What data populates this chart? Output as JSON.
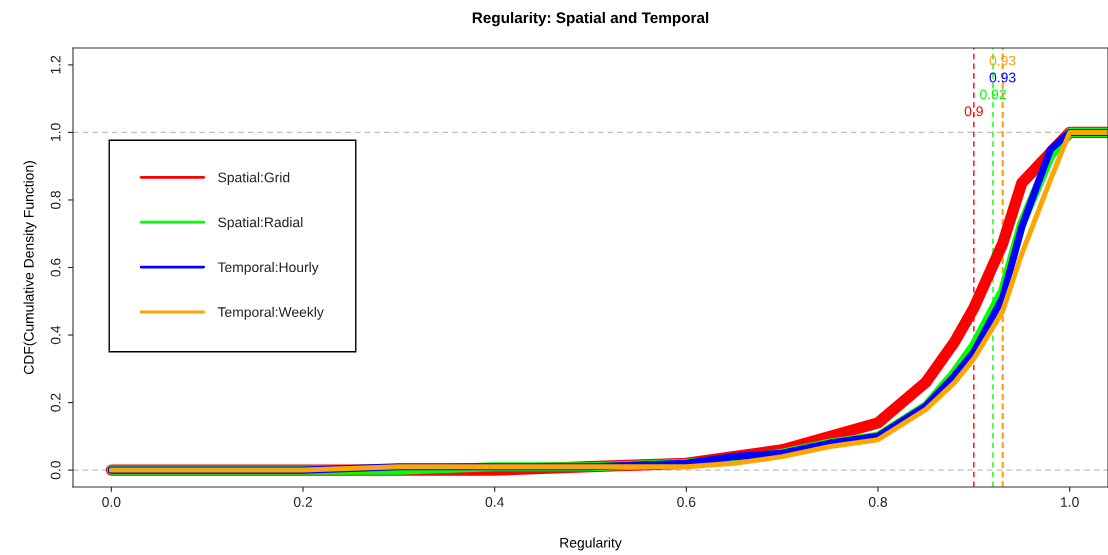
{
  "chart_data": {
    "type": "line",
    "title": "Regularity: Spatial and Temporal",
    "xlabel": "Regularity",
    "ylabel": "CDF(Cumulative Density Function)",
    "x": [
      0,
      0.1,
      0.2,
      0.3,
      0.4,
      0.5,
      0.6,
      0.65,
      0.7,
      0.75,
      0.8,
      0.85,
      0.88,
      0.9,
      0.93,
      0.95,
      0.98,
      1.0,
      1.04
    ],
    "series": [
      {
        "name": "Spatial:Grid",
        "color": "#ff0000",
        "values": [
          0,
          0,
          0,
          0,
          0,
          0.01,
          0.02,
          0.04,
          0.06,
          0.1,
          0.14,
          0.26,
          0.38,
          0.48,
          0.67,
          0.85,
          0.94,
          1.0,
          1.0
        ]
      },
      {
        "name": "Spatial:Radial",
        "color": "#00ff00",
        "values": [
          0,
          0,
          0,
          0,
          0.01,
          0.01,
          0.02,
          0.03,
          0.05,
          0.08,
          0.1,
          0.19,
          0.29,
          0.37,
          0.53,
          0.73,
          0.93,
          1.0,
          1.0
        ]
      },
      {
        "name": "Temporal:Hourly",
        "color": "#0000ff",
        "values": [
          0,
          0,
          0,
          0.01,
          0.01,
          0.01,
          0.02,
          0.04,
          0.05,
          0.08,
          0.1,
          0.19,
          0.28,
          0.35,
          0.51,
          0.72,
          0.95,
          1.0,
          1.0
        ]
      },
      {
        "name": "Temporal:Weekly",
        "color": "#ffa500",
        "values": [
          0,
          0,
          0,
          0.01,
          0.01,
          0.01,
          0.01,
          0.02,
          0.04,
          0.07,
          0.09,
          0.18,
          0.26,
          0.33,
          0.47,
          0.64,
          0.86,
          1.0,
          1.0
        ]
      }
    ],
    "xlim": [
      -0.04,
      1.04
    ],
    "ylim": [
      -0.05,
      1.25
    ],
    "xticks": [
      {
        "value": 0,
        "label": "0.0"
      },
      0.2,
      0.4,
      0.6,
      0.8,
      {
        "value": 1,
        "label": "1.0"
      }
    ],
    "yticks": [
      {
        "value": 0,
        "label": "0.0"
      },
      0.2,
      0.4,
      0.6,
      0.8,
      {
        "value": 1,
        "label": "1.0"
      },
      1.2
    ],
    "ref_lines": [
      {
        "axis": "y",
        "value": 0,
        "color": "#bebebe",
        "line_style": "dashed"
      },
      {
        "axis": "y",
        "value": 1,
        "color": "#bebebe",
        "line_style": "dashed"
      },
      {
        "axis": "x",
        "value": 0.9,
        "label": "0.9",
        "color": "#ff0000",
        "line_style": "dashed"
      },
      {
        "axis": "x",
        "value": 0.92,
        "label": "0.92",
        "color": "#00ff00",
        "line_style": "dashed"
      },
      {
        "axis": "x",
        "value": 0.93,
        "label": "0.93",
        "color": "#0000ff",
        "line_style": "dashed"
      },
      {
        "axis": "x",
        "value": 0.93,
        "label": "0.93",
        "color": "#ffa500",
        "line_style": "dashed"
      }
    ],
    "legend": "top left",
    "grid": false,
    "marker": "none",
    "line_style": "solid"
  }
}
